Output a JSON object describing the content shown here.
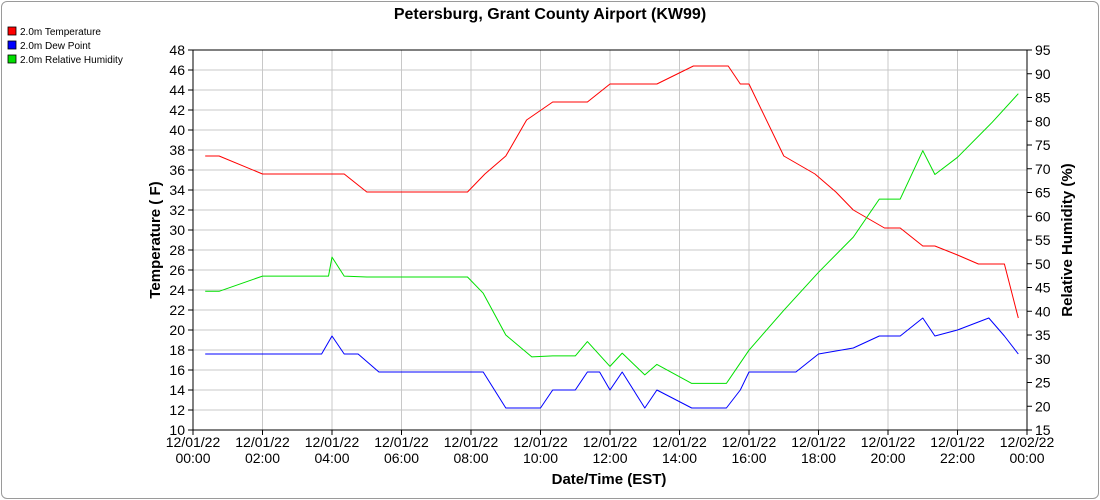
{
  "chart_data": {
    "type": "line",
    "title": "Petersburg, Grant County Airport (KW99)",
    "xlabel": "Date/Time (EST)",
    "ylabel_left": "Temperature ( F)",
    "ylabel_right": "Relative Humidity (%)",
    "ylim_left": [
      10,
      48
    ],
    "ylim_right": [
      15,
      95
    ],
    "xlim_hours": [
      0,
      24
    ],
    "grid": true,
    "legend_position": "top-left",
    "x_ticks": [
      {
        "date": "12/01/22",
        "time": "00:00"
      },
      {
        "date": "12/01/22",
        "time": "02:00"
      },
      {
        "date": "12/01/22",
        "time": "04:00"
      },
      {
        "date": "12/01/22",
        "time": "06:00"
      },
      {
        "date": "12/01/22",
        "time": "08:00"
      },
      {
        "date": "12/01/22",
        "time": "10:00"
      },
      {
        "date": "12/01/22",
        "time": "12:00"
      },
      {
        "date": "12/01/22",
        "time": "14:00"
      },
      {
        "date": "12/01/22",
        "time": "16:00"
      },
      {
        "date": "12/01/22",
        "time": "18:00"
      },
      {
        "date": "12/01/22",
        "time": "20:00"
      },
      {
        "date": "12/01/22",
        "time": "22:00"
      },
      {
        "date": "12/02/22",
        "time": "00:00"
      }
    ],
    "left_ticks": [
      10,
      12,
      14,
      16,
      18,
      20,
      22,
      24,
      26,
      28,
      30,
      32,
      34,
      36,
      38,
      40,
      42,
      44,
      46,
      48
    ],
    "right_ticks": [
      15,
      20,
      25,
      30,
      35,
      40,
      45,
      50,
      55,
      60,
      65,
      70,
      75,
      80,
      85,
      90,
      95
    ],
    "series": [
      {
        "name": "2.0m Temperature",
        "axis": "left",
        "color": "#ff0000",
        "x": [
          0.35,
          0.75,
          2.0,
          3.0,
          3.9,
          4.35,
          5.0,
          5.6,
          6.0,
          7.0,
          7.9,
          8.4,
          9.0,
          9.6,
          10.35,
          11.0,
          11.35,
          12.0,
          12.6,
          13.0,
          13.35,
          14.4,
          15.0,
          15.4,
          15.75,
          16.0,
          17.0,
          17.9,
          18.5,
          19.0,
          19.9,
          20.35,
          21.0,
          21.35,
          22.0,
          22.6,
          23.35,
          23.75
        ],
        "values": [
          37.4,
          37.4,
          35.6,
          35.6,
          35.6,
          35.6,
          33.8,
          33.8,
          33.8,
          33.8,
          33.8,
          35.6,
          37.4,
          41.0,
          42.8,
          42.8,
          42.8,
          44.6,
          44.6,
          44.6,
          44.6,
          46.4,
          46.4,
          46.4,
          44.6,
          44.6,
          37.4,
          35.6,
          33.8,
          32.0,
          30.2,
          30.2,
          28.4,
          28.4,
          27.5,
          26.6,
          26.6,
          21.2
        ]
      },
      {
        "name": "2.0m Dew Point",
        "axis": "left",
        "color": "#0000ff",
        "x": [
          0.35,
          1.0,
          2.0,
          3.0,
          3.7,
          4.0,
          4.35,
          4.75,
          5.35,
          6.0,
          7.0,
          8.0,
          8.35,
          9.0,
          9.35,
          10.0,
          10.35,
          11.0,
          11.35,
          11.7,
          12.0,
          12.35,
          13.0,
          13.35,
          14.35,
          15.0,
          15.35,
          15.75,
          16.0,
          17.0,
          17.35,
          18.0,
          19.0,
          19.75,
          20.35,
          21.0,
          21.35,
          22.0,
          22.9,
          23.35,
          23.75
        ],
        "values": [
          17.6,
          17.6,
          17.6,
          17.6,
          17.6,
          19.4,
          17.6,
          17.6,
          15.8,
          15.8,
          15.8,
          15.8,
          15.8,
          12.2,
          12.2,
          12.2,
          14.0,
          14.0,
          15.8,
          15.8,
          14.0,
          15.8,
          12.2,
          14.0,
          12.2,
          12.2,
          12.2,
          14.0,
          15.8,
          15.8,
          15.8,
          17.6,
          18.2,
          19.4,
          19.4,
          21.2,
          19.4,
          20.0,
          21.2,
          19.4,
          17.6
        ]
      },
      {
        "name": "2.0m Relative Humidity",
        "axis": "right",
        "color": "#00e000",
        "x": [
          0.35,
          0.75,
          2.0,
          3.0,
          3.9,
          4.0,
          4.35,
          5.0,
          6.0,
          7.0,
          7.9,
          8.35,
          9.0,
          9.75,
          10.35,
          11.0,
          11.35,
          12.0,
          12.35,
          13.0,
          13.35,
          14.35,
          15.0,
          15.35,
          16.0,
          17.0,
          18.0,
          19.0,
          19.75,
          20.35,
          21.0,
          21.35,
          22.0,
          23.0,
          23.75
        ],
        "values": [
          44.2,
          44.2,
          47.4,
          47.4,
          47.4,
          51.4,
          47.4,
          47.2,
          47.2,
          47.2,
          47.2,
          43.8,
          35.0,
          30.4,
          30.6,
          30.6,
          33.6,
          28.4,
          31.2,
          26.6,
          28.8,
          24.8,
          24.8,
          24.8,
          31.8,
          40.2,
          48.2,
          55.6,
          63.6,
          63.6,
          73.8,
          68.8,
          72.4,
          79.8,
          85.8
        ]
      }
    ]
  }
}
